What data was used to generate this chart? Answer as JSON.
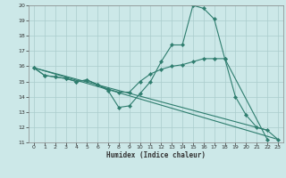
{
  "title": "",
  "xlabel": "Humidex (Indice chaleur)",
  "xlim": [
    -0.5,
    23.5
  ],
  "ylim": [
    11,
    20
  ],
  "xticks": [
    0,
    1,
    2,
    3,
    4,
    5,
    6,
    7,
    8,
    9,
    10,
    11,
    12,
    13,
    14,
    15,
    16,
    17,
    18,
    19,
    20,
    21,
    22,
    23
  ],
  "yticks": [
    11,
    12,
    13,
    14,
    15,
    16,
    17,
    18,
    19,
    20
  ],
  "line_color": "#2e7d6e",
  "bg_color": "#cce8e8",
  "grid_color": "#aacccc",
  "line1_x": [
    0,
    1,
    2,
    3,
    4,
    5,
    6,
    7,
    8,
    9,
    10,
    11,
    12,
    13,
    14,
    15,
    16,
    17,
    18,
    22
  ],
  "line1_y": [
    15.9,
    15.4,
    15.3,
    15.2,
    15.0,
    15.1,
    14.8,
    14.4,
    13.3,
    13.4,
    14.2,
    15.0,
    16.3,
    17.4,
    17.4,
    20.0,
    19.8,
    19.1,
    16.5,
    11.2
  ],
  "line2_x": [
    0,
    1,
    2,
    3,
    4,
    5,
    6,
    7,
    8,
    9,
    10,
    11,
    12,
    13,
    14,
    15,
    16,
    17,
    18,
    19,
    20,
    21,
    22,
    23
  ],
  "line2_y": [
    15.9,
    15.4,
    15.3,
    15.2,
    15.0,
    15.1,
    14.8,
    14.5,
    14.3,
    14.3,
    15.0,
    15.5,
    15.8,
    16.0,
    16.1,
    16.3,
    16.5,
    16.5,
    16.5,
    14.0,
    12.8,
    12.0,
    11.8,
    11.2
  ],
  "line3_x": [
    0,
    23
  ],
  "line3_y": [
    15.9,
    11.2
  ],
  "line4_x": [
    0,
    22
  ],
  "line4_y": [
    15.9,
    11.8
  ]
}
